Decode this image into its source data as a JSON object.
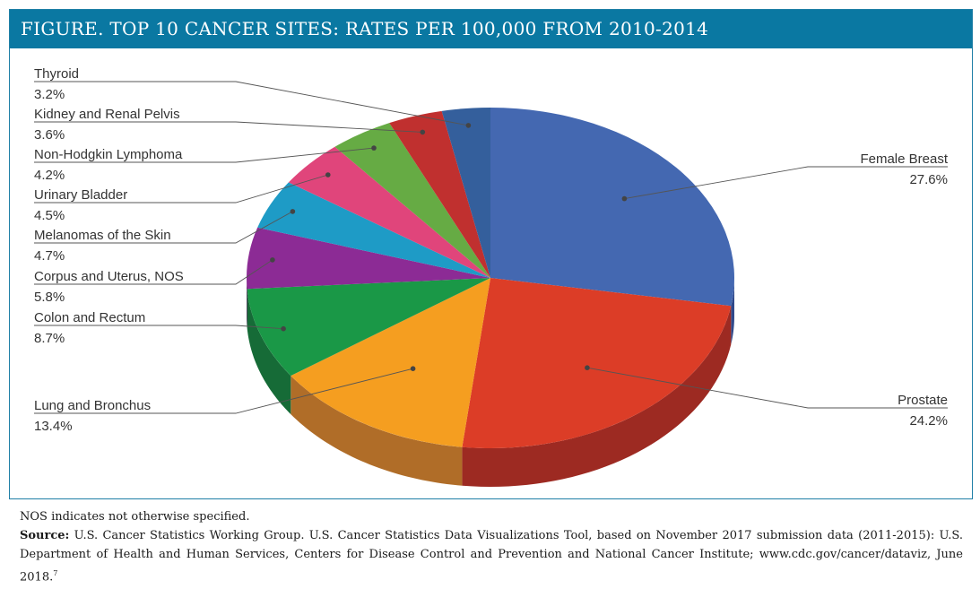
{
  "title": "FIGURE. TOP 10 CANCER SITES: RATES PER 100,000 FROM 2010-2014",
  "chart_data": {
    "type": "pie",
    "slices": [
      {
        "label": "Female Breast",
        "value": 27.6,
        "display": "27.6%",
        "color": "#4468b1",
        "side_color": "#30498a"
      },
      {
        "label": "Prostate",
        "value": 24.2,
        "display": "24.2%",
        "color": "#dc3d27",
        "side_color": "#9d2a22"
      },
      {
        "label": "Lung and Bronchus",
        "value": 13.4,
        "display": "13.4%",
        "color": "#f59e20",
        "side_color": "#b06d28"
      },
      {
        "label": "Colon and Rectum",
        "value": 8.7,
        "display": "8.7%",
        "color": "#1a9847",
        "side_color": "#166b37"
      },
      {
        "label": "Corpus and Uterus, NOS",
        "value": 5.8,
        "display": "5.8%",
        "color": "#8c2b95",
        "side_color": "#5e1f66"
      },
      {
        "label": "Melanomas of the Skin",
        "value": 4.7,
        "display": "4.7%",
        "color": "#1e9bc6",
        "side_color": "#166f8f"
      },
      {
        "label": "Urinary Bladder",
        "value": 4.5,
        "display": "4.5%",
        "color": "#e0457b",
        "side_color": "#9e3158"
      },
      {
        "label": "Non-Hodgkin Lymphoma",
        "value": 4.2,
        "display": "4.2%",
        "color": "#66ab44",
        "side_color": "#467a30"
      },
      {
        "label": "Kidney and Renal Pelvis",
        "value": 3.6,
        "display": "3.6%",
        "color": "#c0302f",
        "side_color": "#862221"
      },
      {
        "label": "Thyroid",
        "value": 3.2,
        "display": "3.2%",
        "color": "#345f9c",
        "side_color": "#24436f"
      }
    ]
  },
  "notes": {
    "nos": "NOS indicates not otherwise specified.",
    "source_label": "Source:",
    "source_text": " U.S. Cancer Statistics Working Group. U.S. Cancer Statistics Data Visualizations Tool, based on November 2017 submission data (2011-2015): U.S. Department of Health and Human Services, Centers for Disease Control and Prevention and National Cancer Institute; www.cdc.gov/cancer/dataviz, June 2018.",
    "source_ref": "7"
  }
}
